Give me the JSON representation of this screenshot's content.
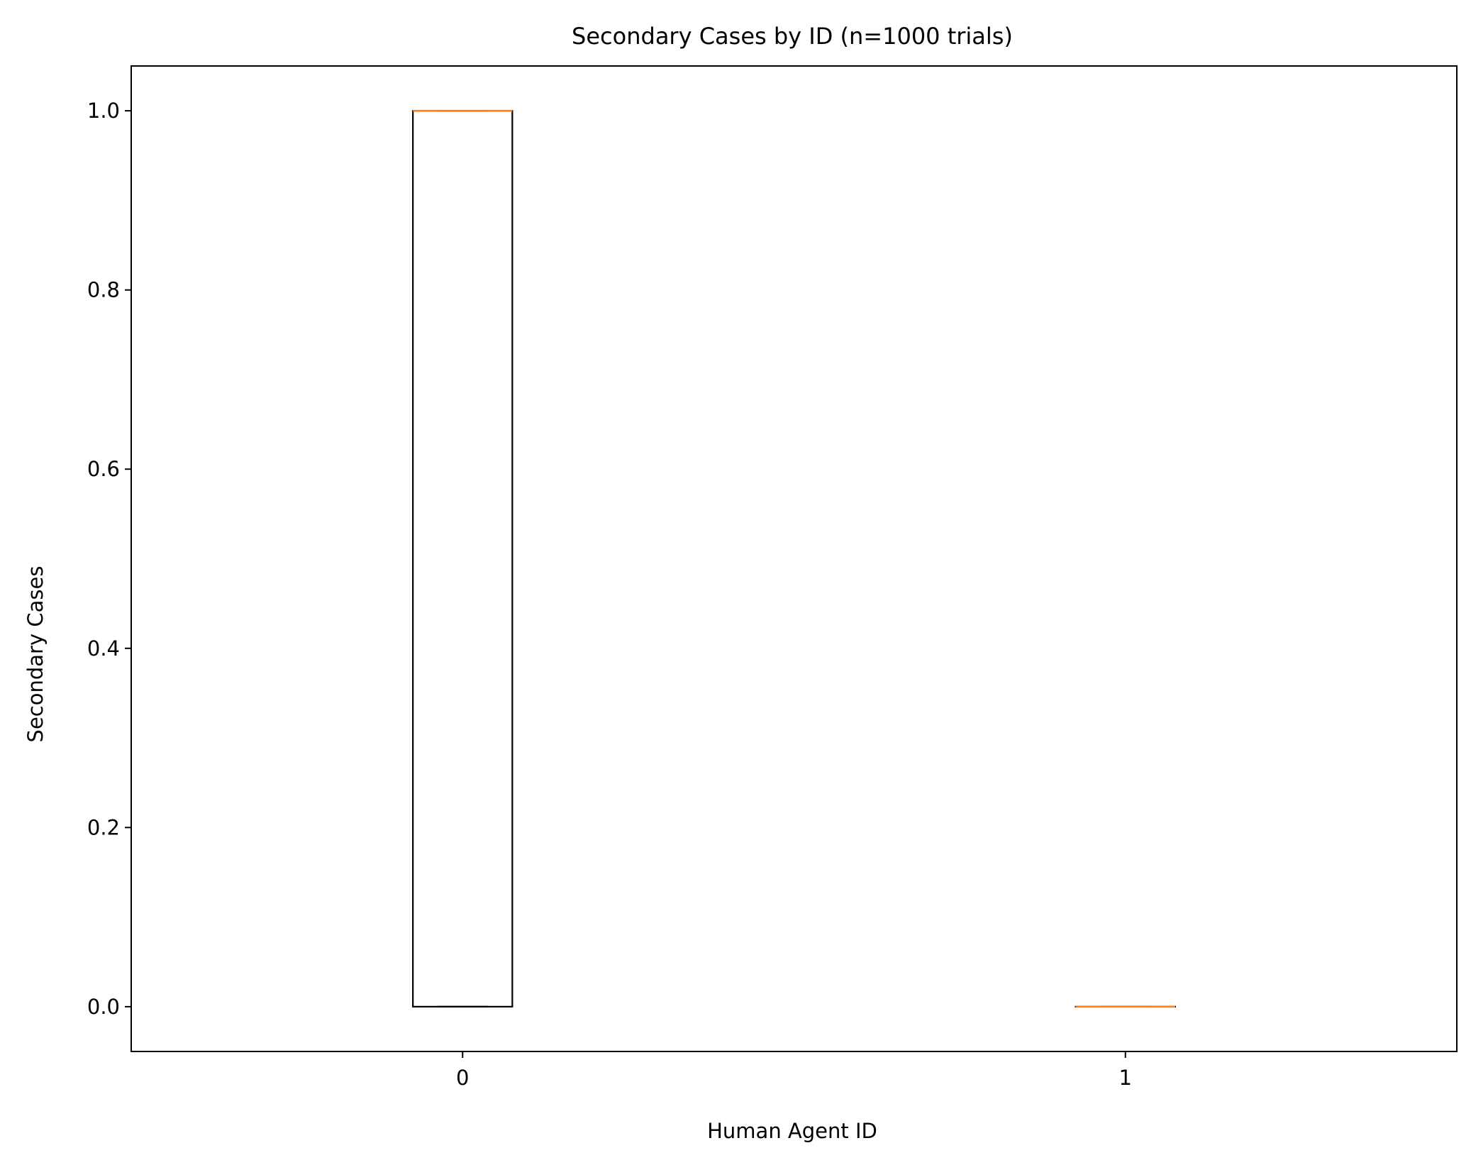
{
  "chart_data": {
    "type": "box",
    "title": "Secondary Cases by ID (n=1000 trials)",
    "xlabel": "Human Agent ID",
    "ylabel": "Secondary Cases",
    "categories": [
      "0",
      "1"
    ],
    "boxes": [
      {
        "label": "0",
        "whislo": 0.0,
        "q1": 0.0,
        "median": 1.0,
        "q3": 1.0,
        "whishi": 1.0
      },
      {
        "label": "1",
        "whislo": 0.0,
        "q1": 0.0,
        "median": 0.0,
        "q3": 0.0,
        "whishi": 0.0
      }
    ],
    "ylim": [
      -0.05,
      1.05
    ],
    "xlim": [
      0.5,
      2.5
    ],
    "yticks": [
      0.0,
      0.2,
      0.4,
      0.6,
      0.8,
      1.0
    ],
    "ytick_labels": [
      "0.0",
      "0.2",
      "0.4",
      "0.6",
      "0.8",
      "1.0"
    ],
    "grid": false,
    "colors": {
      "box": "#000000",
      "median": "#ff7f0e",
      "axes": "#000000"
    }
  }
}
